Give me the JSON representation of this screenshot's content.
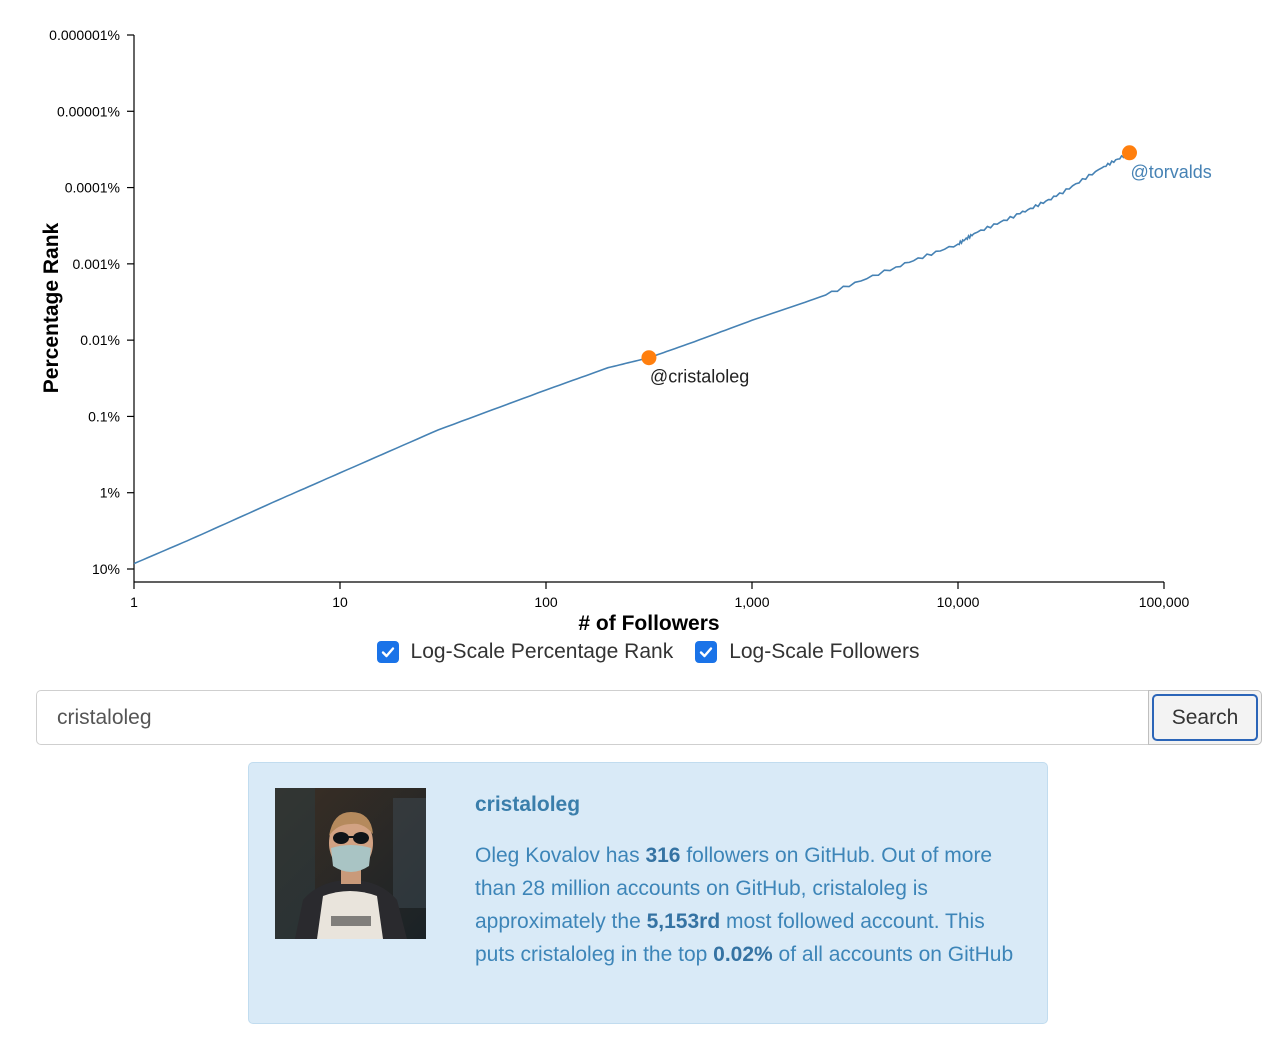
{
  "chart_data": {
    "type": "line",
    "xlabel": "# of Followers",
    "ylabel": "Percentage Rank",
    "x_scale": "log",
    "y_scale": "log",
    "y_reversed": true,
    "xlim": [
      1,
      100000
    ],
    "ylim": [
      10,
      1e-06
    ],
    "x_ticks": [
      1,
      10,
      100,
      1000,
      10000,
      100000
    ],
    "x_tick_labels": [
      "1",
      "10",
      "100",
      "1,000",
      "10,000",
      "100,000"
    ],
    "y_ticks": [
      10,
      1,
      0.1,
      0.01,
      0.001,
      0.0001,
      1e-05,
      1e-06
    ],
    "y_tick_labels": [
      "10%",
      "1%",
      "0.1%",
      "0.01%",
      "0.001%",
      "0.0001%",
      "0.00001%",
      "0.000001%"
    ],
    "grid": false,
    "series": [
      {
        "color": "#4682b4",
        "points": [
          [
            1,
            8.5
          ],
          [
            2,
            3.8
          ],
          [
            5,
            1.25
          ],
          [
            10,
            0.55
          ],
          [
            30,
            0.15
          ],
          [
            100,
            0.045
          ],
          [
            200,
            0.023
          ],
          [
            316,
            0.017
          ],
          [
            500,
            0.011
          ],
          [
            1000,
            0.0055
          ],
          [
            2000,
            0.0029
          ],
          [
            5000,
            0.0011
          ],
          [
            10000,
            0.00055
          ],
          [
            12000,
            0.0004
          ],
          [
            20000,
            0.00022
          ],
          [
            30000,
            0.00013
          ],
          [
            50000,
            5.5e-05
          ],
          [
            68000,
            3.5e-05
          ]
        ]
      }
    ],
    "annotations": [
      {
        "label": "@cristaloleg",
        "x": 316,
        "y": 0.017,
        "color": "#222222"
      },
      {
        "label": "@torvalds",
        "x": 68000,
        "y": 3.5e-05,
        "color": "#4682b4"
      }
    ],
    "marker_color": "#ff7f0e"
  },
  "toggles": [
    {
      "label": "Log-Scale Percentage Rank",
      "checked": true
    },
    {
      "label": "Log-Scale Followers",
      "checked": true
    }
  ],
  "search": {
    "value": "cristaloleg",
    "button_label": "Search"
  },
  "result": {
    "username": "cristaloleg",
    "full_name": "Oleg Kovalov",
    "text_has": " has ",
    "followers": "316",
    "text_after_followers": " followers on GitHub. Out of more than 28 million accounts on GitHub, ",
    "username_inline": "cristaloleg",
    "text_approx": " is approximately the ",
    "rank": "5,153rd",
    "text_most": " most followed account. This puts ",
    "username_inline2": "cristaloleg",
    "text_top": " in the top ",
    "percent": "0.02%",
    "text_end": " of all accounts on GitHub"
  },
  "colors": {
    "accent": "#1a73e8",
    "card_bg": "#d9eaf7",
    "card_text": "#3d85b8"
  }
}
